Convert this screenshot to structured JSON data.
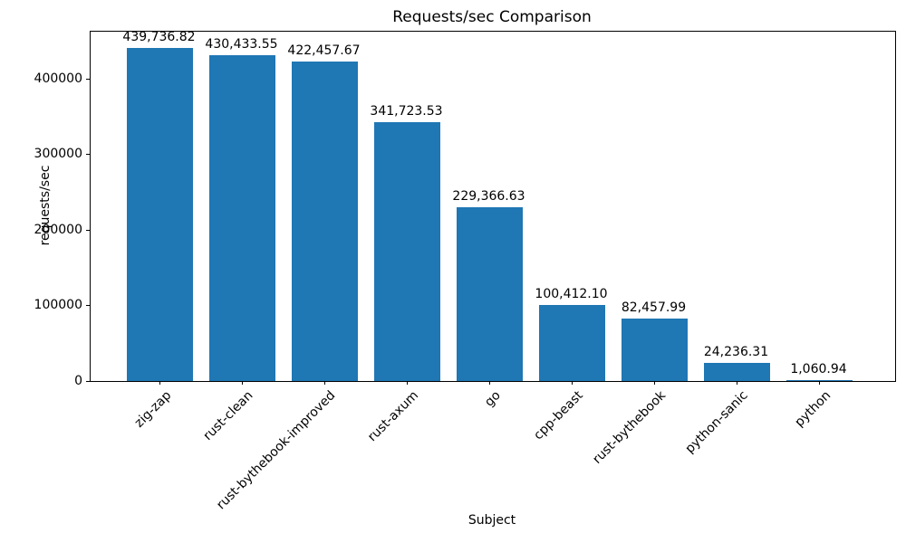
{
  "chart_data": {
    "type": "bar",
    "title": "Requests/sec Comparison",
    "xlabel": "Subject",
    "ylabel": "requests/sec",
    "categories": [
      "zig-zap",
      "rust-clean",
      "rust-bythebook-improved",
      "rust-axum",
      "go",
      "cpp-beast",
      "rust-bythebook",
      "python-sanic",
      "python"
    ],
    "values": [
      439736.82,
      430433.55,
      422457.67,
      341723.53,
      229366.63,
      100412.1,
      82457.99,
      24236.31,
      1060.94
    ],
    "bar_labels": [
      "439,736.82",
      "430,433.55",
      "422,457.67",
      "341,723.53",
      "229,366.63",
      "100,412.10",
      "82,457.99",
      "24,236.31",
      "1,060.94"
    ],
    "yticks": [
      "0",
      "100000",
      "200000",
      "300000",
      "400000"
    ],
    "ytick_values": [
      0,
      100000,
      200000,
      300000,
      400000
    ],
    "ylim": [
      0,
      461724
    ],
    "bar_color": "#1f77b4",
    "grid": false,
    "legend_position": "none"
  }
}
